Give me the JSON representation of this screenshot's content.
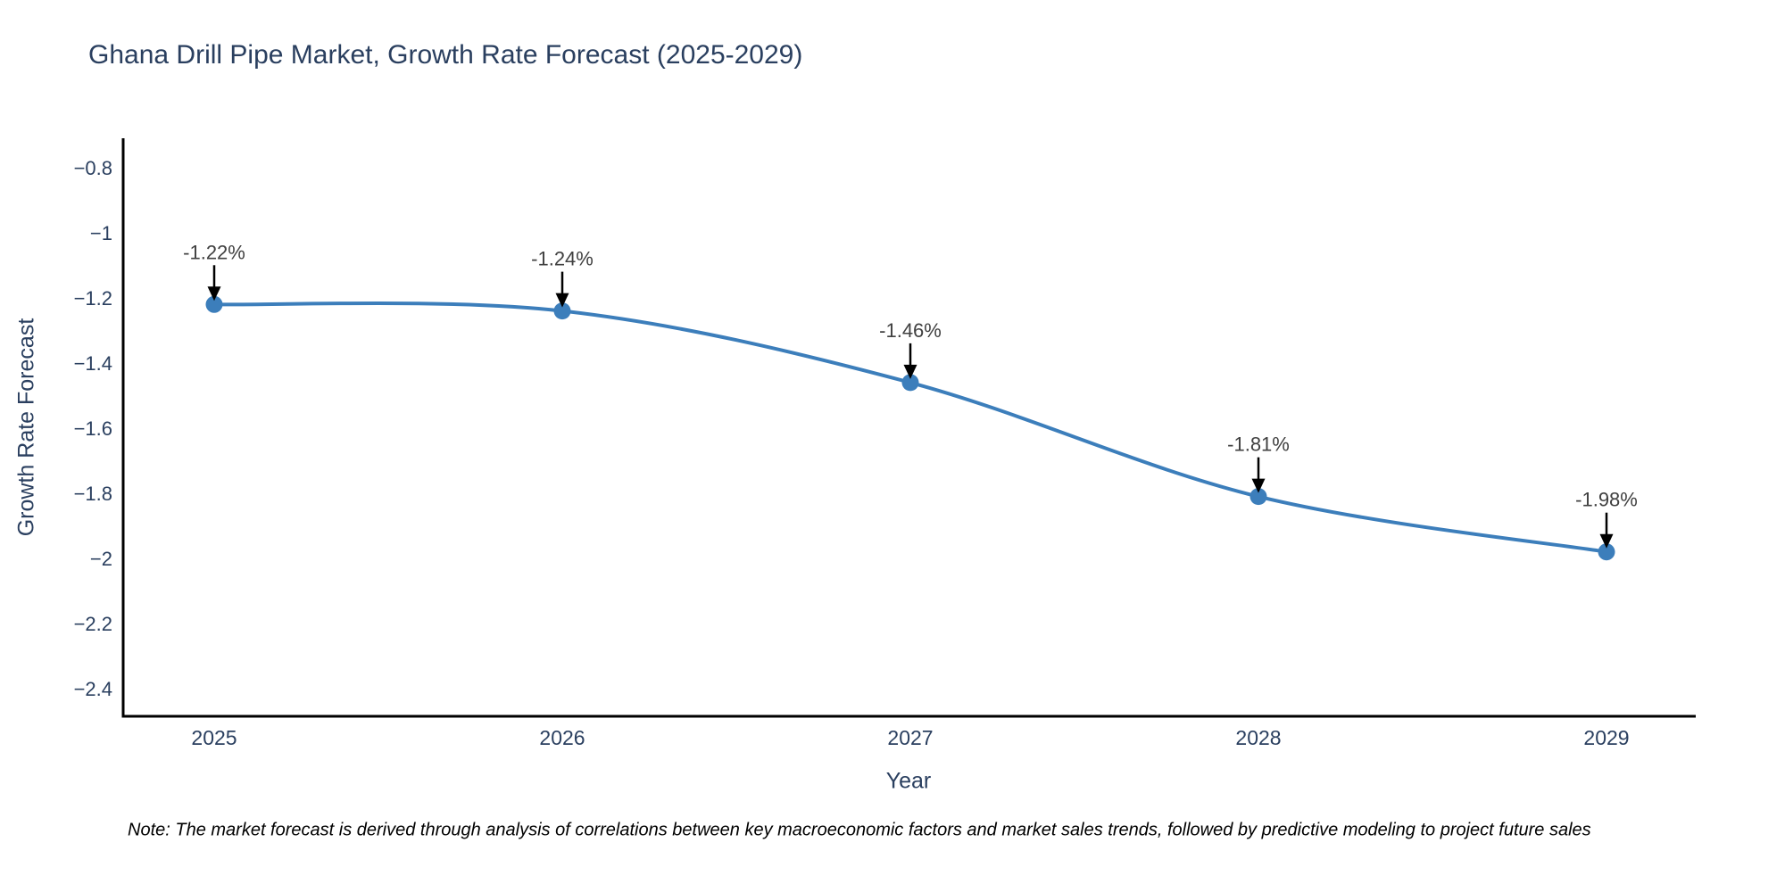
{
  "chart": {
    "title": "Ghana Drill Pipe Market, Growth Rate Forecast (2025-2029)",
    "x_axis_title": "Year",
    "y_axis_title": "Growth Rate Forecast",
    "note": "Note: The market forecast is derived through analysis of correlations between key macroeconomic factors and market sales trends, followed by predictive modeling to project future sales"
  },
  "chart_data": {
    "type": "line",
    "title": "Ghana Drill Pipe Market, Growth Rate Forecast (2025-2029)",
    "xlabel": "Year",
    "ylabel": "Growth Rate Forecast",
    "x": [
      2025,
      2026,
      2027,
      2028,
      2029
    ],
    "x_tick_labels": [
      "2025",
      "2026",
      "2027",
      "2028",
      "2029"
    ],
    "series": [
      {
        "name": "Growth Rate Forecast",
        "values": [
          -1.22,
          -1.24,
          -1.46,
          -1.81,
          -1.98
        ],
        "point_labels": [
          "-1.22%",
          "-1.24%",
          "-1.46%",
          "-1.81%",
          "-1.98%"
        ]
      }
    ],
    "y_ticks": [
      -0.8,
      -1.0,
      -1.2,
      -1.4,
      -1.6,
      -1.8,
      -2.0,
      -2.2,
      -2.4
    ],
    "y_tick_labels": [
      "−0.8",
      "−1",
      "−1.2",
      "−1.4",
      "−1.6",
      "−1.8",
      "−2",
      "−2.2",
      "−2.4"
    ],
    "ylim": [
      -2.49,
      -0.71
    ],
    "grid": false,
    "legend_position": "none",
    "line_shape": "spline",
    "annotations_have_arrows": true,
    "colors": {
      "line": "#3c7ebb",
      "marker": "#3c7ebb",
      "axis_line": "#000000",
      "tick_label": "#2a3f5f",
      "title": "#2a3f5f",
      "annotation_text": "#404040",
      "arrow": "#000000",
      "note_text": "#000000"
    }
  }
}
